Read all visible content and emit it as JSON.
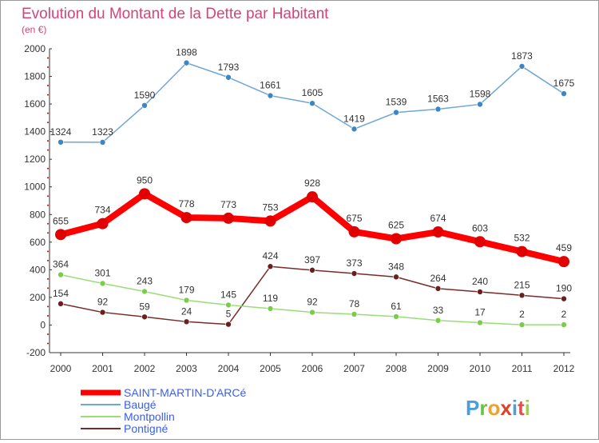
{
  "header": {
    "title": "Evolution du Montant de la Dette par Habitant",
    "subtitle": "(en €)"
  },
  "brand": {
    "logo_text": "Proxiti",
    "colors": [
      "#4a9ee0",
      "#6cc04a",
      "#f0a030",
      "#e0402a",
      "#4a9ee0",
      "#e05050",
      "#9fd04a"
    ]
  },
  "chart_data": {
    "type": "line",
    "title": "Evolution du Montant de la Dette par Habitant",
    "subtitle": "(en €)",
    "x": [
      "2000",
      "2001",
      "2002",
      "2003",
      "2004",
      "2005",
      "2006",
      "2007",
      "2008",
      "2009",
      "2010",
      "2011",
      "2012"
    ],
    "ylim": [
      -200,
      2000
    ],
    "yticks": [
      -200,
      0,
      200,
      400,
      600,
      800,
      1000,
      1200,
      1400,
      1600,
      1800,
      2000
    ],
    "grid": false,
    "legend_position": "bottom-left",
    "series": [
      {
        "name": "SAINT-MARTIN-D'ARCé",
        "color": "#ff0000",
        "marker_color": "#e00000",
        "values": [
          655,
          734,
          950,
          778,
          773,
          753,
          928,
          675,
          625,
          674,
          603,
          532,
          459
        ]
      },
      {
        "name": "Baugé",
        "color": "#6ea6d6",
        "marker_color": "#3d86c6",
        "values": [
          1324,
          1323,
          1590,
          1898,
          1793,
          1661,
          1605,
          1419,
          1539,
          1563,
          1598,
          1873,
          1675
        ]
      },
      {
        "name": "Montpollin",
        "color": "#99dd77",
        "marker_color": "#7ccc4c",
        "values": [
          364,
          301,
          243,
          179,
          145,
          119,
          92,
          78,
          61,
          33,
          17,
          2,
          2
        ]
      },
      {
        "name": "Pontigné",
        "color": "#7a2a2a",
        "marker_color": "#6a1e1e",
        "values": [
          154,
          92,
          59,
          24,
          5,
          424,
          397,
          373,
          348,
          264,
          240,
          215,
          190
        ]
      }
    ]
  }
}
